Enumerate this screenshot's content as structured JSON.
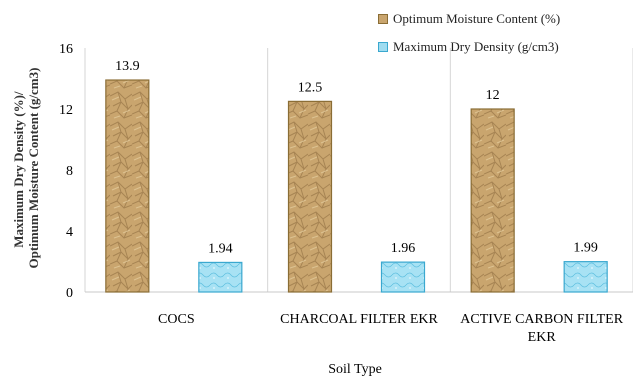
{
  "chart_data": {
    "type": "bar",
    "categories": [
      "COCS",
      "CHARCOAL FILTER EKR",
      "ACTIVE CARBON FILTER EKR"
    ],
    "series": [
      {
        "name": "Optimum Moisture Content (%)",
        "values": [
          13.9,
          12.5,
          12
        ],
        "labels": [
          "13.9",
          "12.5",
          "12"
        ],
        "color": "#c9a56e",
        "edge": "#8a6d35"
      },
      {
        "name": "Maximum Dry Density (g/cm3)",
        "values": [
          1.94,
          1.96,
          1.99
        ],
        "labels": [
          "1.94",
          "1.96",
          "1.99"
        ],
        "color": "#9fdcf0",
        "edge": "#3aa8cf"
      }
    ],
    "title": "",
    "xlabel": "Soil Type",
    "ylabel": [
      "Maximum Dry Density (%)/",
      "Optimum Moisture Content (g/cm3)"
    ],
    "ylim": [
      0,
      16
    ],
    "yticks": [
      0,
      4,
      8,
      12,
      16
    ],
    "grid": "vertical category separators",
    "legend_position": "top-right"
  }
}
